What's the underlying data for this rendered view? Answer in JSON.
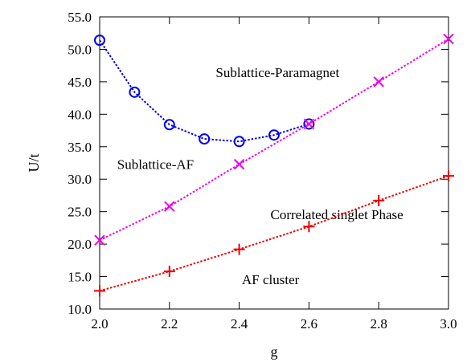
{
  "chart_data": {
    "type": "line",
    "title": "",
    "xlabel": "g",
    "ylabel": "U/t",
    "xlim": [
      2.0,
      3.0
    ],
    "ylim": [
      10.0,
      55.0
    ],
    "xticks": [
      "2.0",
      "2.2",
      "2.4",
      "2.6",
      "2.8",
      "3.0"
    ],
    "xtick_values": [
      2.0,
      2.2,
      2.4,
      2.6,
      2.8,
      3.0
    ],
    "yticks": [
      "10.0",
      "15.0",
      "20.0",
      "25.0",
      "30.0",
      "35.0",
      "40.0",
      "45.0",
      "50.0",
      "55.0"
    ],
    "ytick_values": [
      10,
      15,
      20,
      25,
      30,
      35,
      40,
      45,
      50,
      55
    ],
    "grid": false,
    "legend": "none",
    "series": [
      {
        "marker": "circle",
        "color": "#0000ee",
        "x": [
          2.0,
          2.1,
          2.2,
          2.3,
          2.4,
          2.5,
          2.6
        ],
        "y": [
          51.4,
          43.4,
          38.4,
          36.2,
          35.8,
          36.8,
          38.5
        ]
      },
      {
        "marker": "cross",
        "color": "#ee00ee",
        "x": [
          2.0,
          2.2,
          2.4,
          2.6,
          2.8,
          3.0
        ],
        "y": [
          20.6,
          25.8,
          32.3,
          38.5,
          45.0,
          51.6
        ]
      },
      {
        "marker": "plus",
        "color": "#ee0000",
        "x": [
          2.0,
          2.2,
          2.4,
          2.6,
          2.8,
          3.0
        ],
        "y": [
          12.8,
          15.8,
          19.2,
          22.7,
          26.7,
          30.5
        ]
      }
    ],
    "annotations": [
      {
        "text": "Sublattice-Paramagnet",
        "x": 2.51,
        "y": 46.5
      },
      {
        "text": "Sublattice-AF",
        "x": 2.16,
        "y": 32.3
      },
      {
        "text": "Correlated singlet Phase",
        "x": 2.68,
        "y": 24.6
      },
      {
        "text": "AF cluster",
        "x": 2.49,
        "y": 14.6
      }
    ]
  }
}
